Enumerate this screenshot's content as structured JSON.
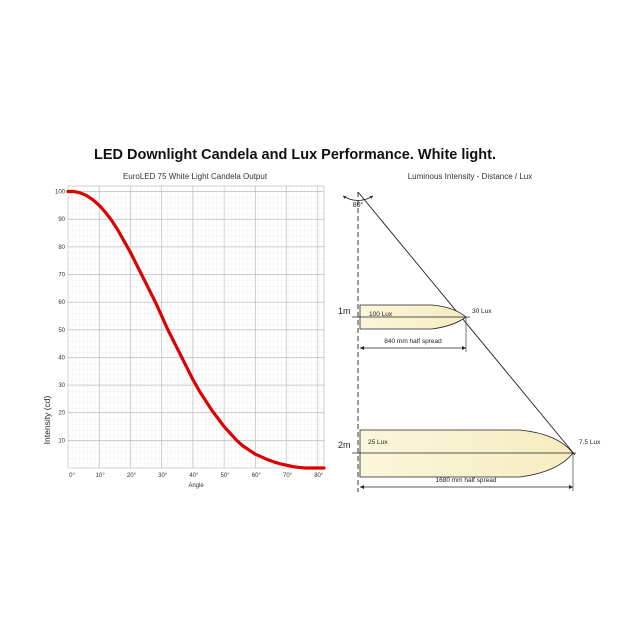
{
  "title": "LED Downlight Candela and Lux Performance. White light.",
  "chart_data": {
    "type": "line",
    "title": "EuroLED 75 White Light Candela Output",
    "xlabel": "Angle",
    "ylabel": "Intensity (cd)",
    "xlim": [
      0,
      82
    ],
    "ylim": [
      0,
      102
    ],
    "xticks": [
      "0°",
      "10°",
      "20°",
      "30°",
      "40°",
      "50°",
      "60°",
      "70°",
      "80°"
    ],
    "yticks": [
      "10",
      "20",
      "30",
      "40",
      "50",
      "60",
      "70",
      "80",
      "90",
      "100"
    ],
    "grid": true,
    "series": [
      {
        "color": "#dd0000",
        "x": [
          0,
          2,
          4,
          6,
          8,
          10,
          12,
          14,
          16,
          18,
          20,
          22,
          24,
          26,
          28,
          30,
          32,
          34,
          36,
          38,
          40,
          42,
          44,
          46,
          48,
          50,
          52,
          54,
          56,
          58,
          60,
          62,
          64,
          66,
          68,
          70,
          72,
          74,
          76,
          78,
          80,
          82
        ],
        "y": [
          100,
          100,
          99.5,
          98.5,
          97,
          95,
          92.5,
          89.5,
          86,
          82,
          78,
          73.5,
          69,
          64.5,
          60,
          55,
          50,
          45.5,
          41,
          36.5,
          32,
          28,
          24.5,
          21,
          18,
          15,
          12.5,
          10,
          8,
          6.5,
          5,
          4,
          3,
          2.2,
          1.5,
          1,
          0.5,
          0.2,
          0,
          0,
          0,
          0
        ]
      }
    ]
  },
  "diagram": {
    "title": "Luminous Intensity - Distance / Lux",
    "beam_angle": "80°",
    "rows": [
      {
        "distance": "1m",
        "center_lux": "100 Lux",
        "edge_lux": "30 Lux",
        "spread": "840 mm half spread"
      },
      {
        "distance": "2m",
        "center_lux": "25 Lux",
        "edge_lux": "7.5 Lux",
        "spread": "1680 mm half spread"
      }
    ]
  }
}
